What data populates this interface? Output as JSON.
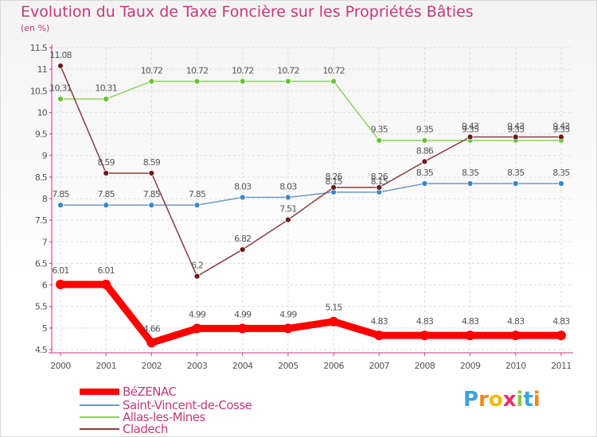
{
  "chart_data": {
    "type": "line",
    "title": "Evolution du Taux de Taxe Foncière sur les Propriétés Bâties",
    "ylabel": "(en %)",
    "xlabel": "",
    "x": [
      "2000",
      "2001",
      "2002",
      "2003",
      "2004",
      "2005",
      "2006",
      "2007",
      "2008",
      "2009",
      "2010",
      "2011"
    ],
    "ylim": [
      4.5,
      11.5
    ],
    "yticks": [
      "4.5",
      "5",
      "5.5",
      "6",
      "6.5",
      "7",
      "7.5",
      "8",
      "8.5",
      "9",
      "9.5",
      "10",
      "10.5",
      "11",
      "11.5"
    ],
    "series": [
      {
        "name": "BéZENAC",
        "color": "#ff0000",
        "marker": "#ff0000",
        "values": [
          6.01,
          6.01,
          4.66,
          4.99,
          4.99,
          4.99,
          5.15,
          4.83,
          4.83,
          4.83,
          4.83,
          4.83
        ],
        "labels": [
          "6.01",
          "6.01",
          "4.66",
          "4.99",
          "4.99",
          "4.99",
          "5.15",
          "4.83",
          "4.83",
          "4.83",
          "4.83",
          "4.83"
        ]
      },
      {
        "name": "Saint-Vincent-de-Cosse",
        "color": "#6b9ac4",
        "marker": "#3a86c8",
        "values": [
          7.85,
          7.85,
          7.85,
          7.85,
          8.03,
          8.03,
          8.15,
          8.15,
          8.35,
          8.35,
          8.35,
          8.35
        ],
        "labels": [
          "7.85",
          "7.85",
          "7.85",
          "7.85",
          "8.03",
          "8.03",
          "8.15",
          "8.15",
          "8.35",
          "8.35",
          "8.35",
          "8.35"
        ]
      },
      {
        "name": "Allas-les-Mines",
        "color": "#8cd45e",
        "marker": "#66c233",
        "values": [
          10.31,
          10.31,
          10.72,
          10.72,
          10.72,
          10.72,
          10.72,
          9.35,
          9.35,
          9.35,
          9.35,
          9.35
        ],
        "labels": [
          "10.31",
          "10.31",
          "10.72",
          "10.72",
          "10.72",
          "10.72",
          "10.72",
          "9.35",
          "9.35",
          "9.35",
          "9.35",
          "9.35"
        ]
      },
      {
        "name": "Cladech",
        "color": "#8a3c3c",
        "marker": "#6b1a1a",
        "values": [
          11.08,
          8.59,
          8.59,
          6.2,
          6.82,
          7.51,
          8.26,
          8.26,
          8.86,
          9.43,
          9.43,
          9.43
        ],
        "labels": [
          "11.08",
          "8.59",
          "8.59",
          "6.2",
          "6.82",
          "7.51",
          "8.26",
          "8.26",
          "8.86",
          "9.43",
          "9.43",
          "9.43"
        ]
      }
    ]
  },
  "logo": {
    "text": "Proxiti",
    "letters": [
      "P",
      "r",
      "o",
      "x",
      "i",
      "t",
      "i"
    ]
  }
}
